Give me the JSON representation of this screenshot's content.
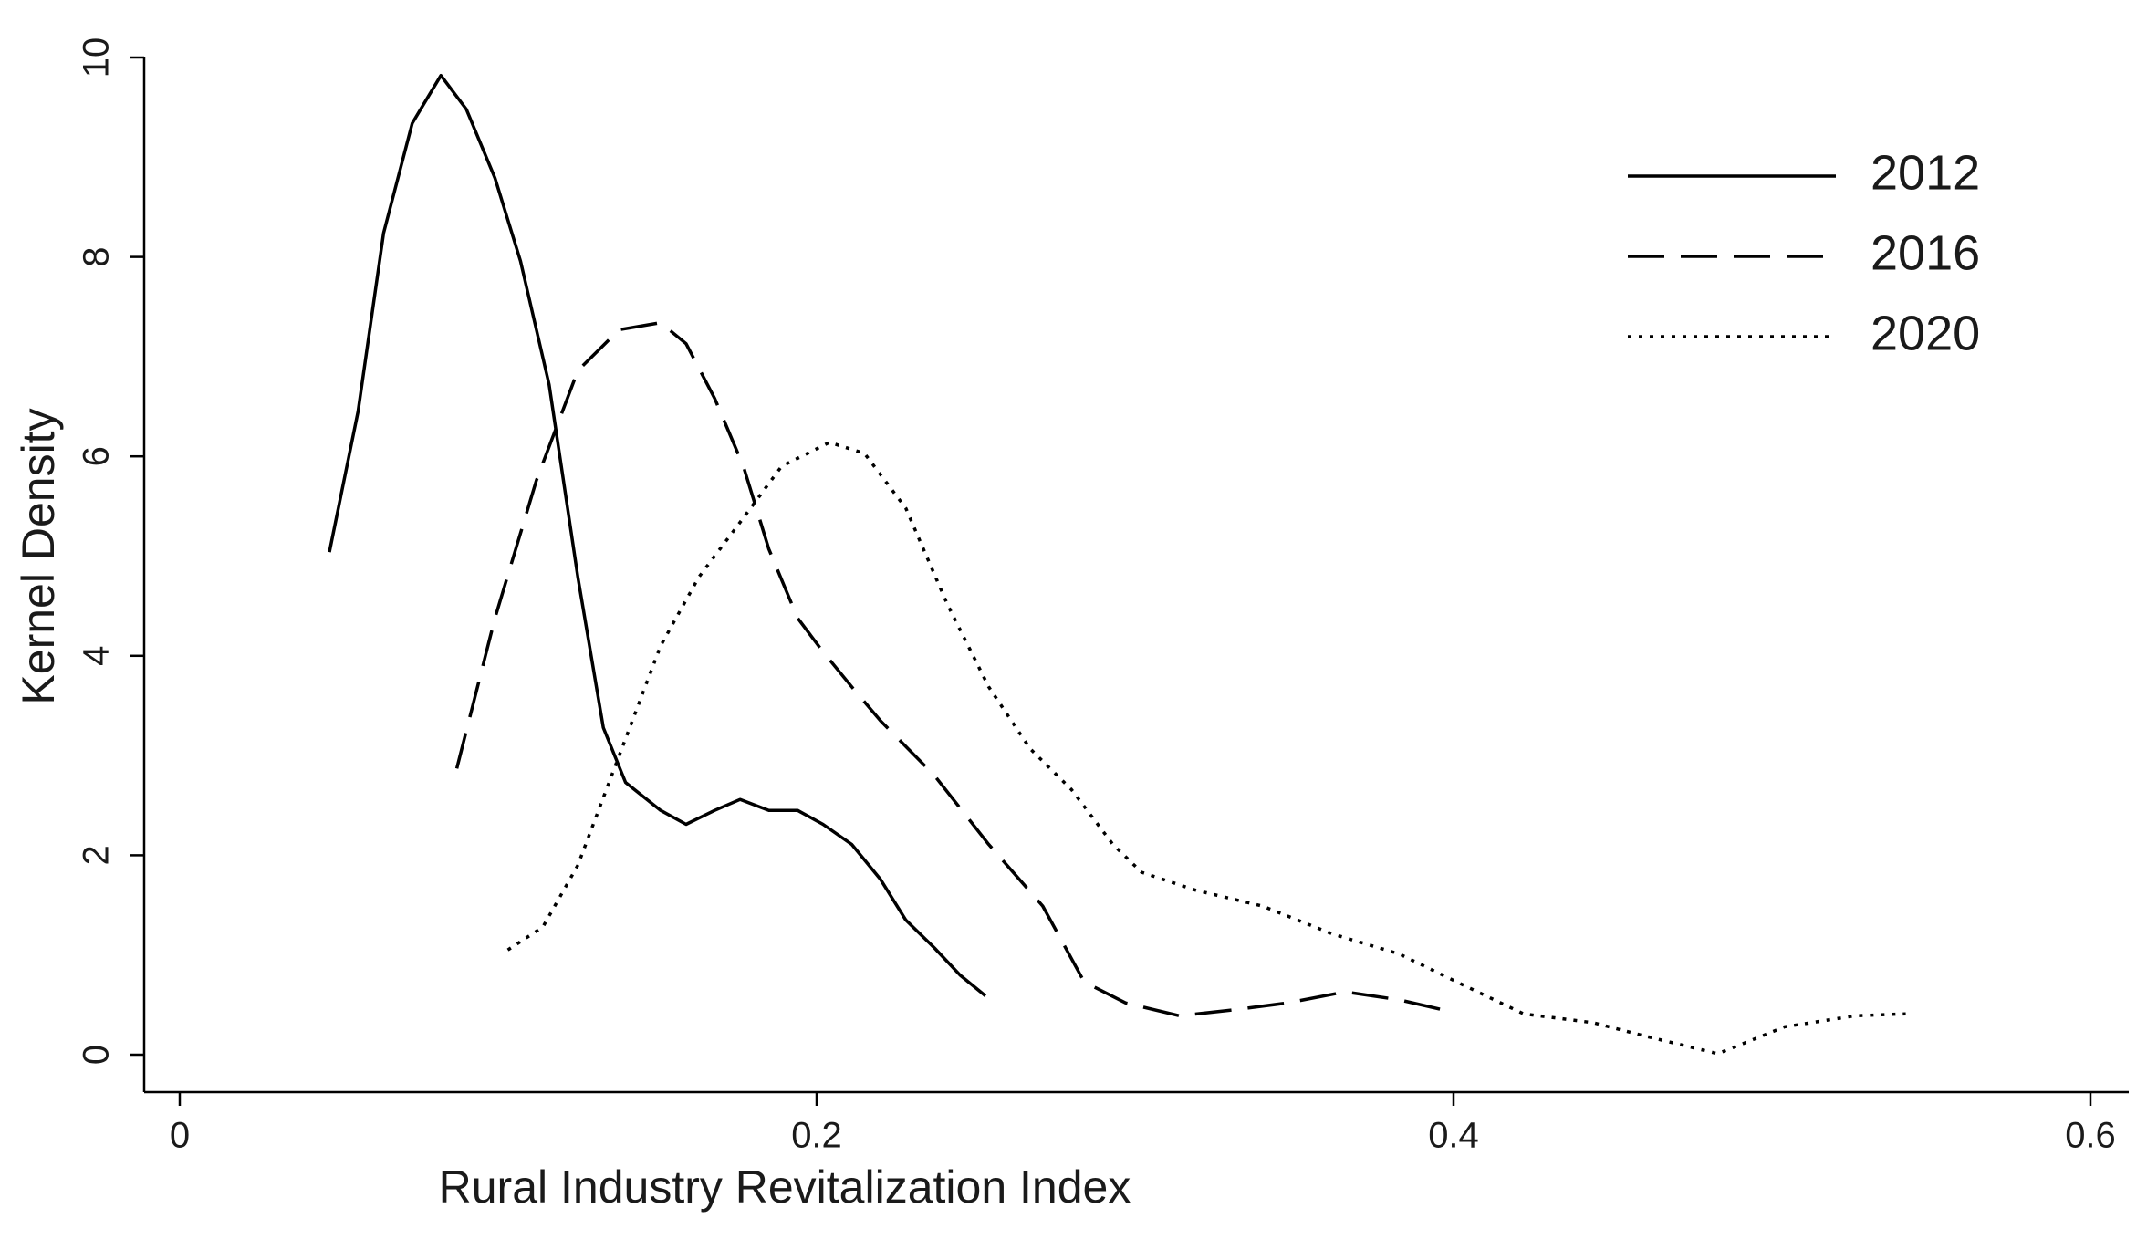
{
  "chart_data": {
    "type": "line",
    "x_label": "Rural Industry Revitalization Index",
    "y_label": "Kernel Density",
    "xlim": [
      0,
      0.6
    ],
    "xticks": [
      0,
      0.2,
      0.4,
      0.6
    ],
    "ylim": [
      0,
      10
    ],
    "yticks": [
      0,
      2,
      4,
      6,
      8,
      10
    ],
    "legend": "top-right",
    "series": [
      {
        "name": "2012",
        "color": "#000000",
        "style": "solid",
        "x": [
          0.047,
          0.056,
          0.064,
          0.073,
          0.082,
          0.09,
          0.099,
          0.107,
          0.116,
          0.125,
          0.133,
          0.14,
          0.151,
          0.159,
          0.168,
          0.176,
          0.185,
          0.194,
          0.202,
          0.211,
          0.22,
          0.228,
          0.237,
          0.245,
          0.253
        ],
        "values": [
          5.04,
          6.45,
          8.24,
          9.34,
          9.82,
          9.48,
          8.79,
          7.96,
          6.72,
          4.79,
          3.28,
          2.73,
          2.45,
          2.31,
          2.45,
          2.56,
          2.45,
          2.45,
          2.31,
          2.11,
          1.76,
          1.35,
          1.07,
          0.8,
          0.59
        ]
      },
      {
        "name": "2016",
        "color": "#000000",
        "style": "dashed",
        "x": [
          0.087,
          0.099,
          0.112,
          0.125,
          0.138,
          0.151,
          0.159,
          0.168,
          0.177,
          0.185,
          0.194,
          0.202,
          0.211,
          0.22,
          0.237,
          0.254,
          0.271,
          0.284,
          0.297,
          0.314,
          0.331,
          0.348,
          0.366,
          0.383,
          0.398
        ],
        "values": [
          2.87,
          4.38,
          5.76,
          6.86,
          7.27,
          7.34,
          7.13,
          6.58,
          5.9,
          5.07,
          4.38,
          4.04,
          3.69,
          3.35,
          2.8,
          2.11,
          1.49,
          0.73,
          0.52,
          0.39,
          0.45,
          0.52,
          0.63,
          0.55,
          0.44
        ]
      },
      {
        "name": "2020",
        "color": "#000000",
        "style": "dotted",
        "x": [
          0.103,
          0.114,
          0.125,
          0.138,
          0.151,
          0.163,
          0.176,
          0.189,
          0.204,
          0.215,
          0.228,
          0.241,
          0.254,
          0.267,
          0.28,
          0.293,
          0.302,
          0.319,
          0.34,
          0.362,
          0.383,
          0.401,
          0.422,
          0.444,
          0.461,
          0.483,
          0.504,
          0.526,
          0.542
        ],
        "values": [
          1.05,
          1.28,
          1.9,
          3.0,
          4.1,
          4.79,
          5.34,
          5.9,
          6.14,
          6.03,
          5.48,
          4.52,
          3.69,
          3.07,
          2.66,
          2.11,
          1.83,
          1.65,
          1.49,
          1.21,
          1.01,
          0.73,
          0.41,
          0.32,
          0.18,
          0.01,
          0.28,
          0.39,
          0.41
        ]
      }
    ]
  }
}
